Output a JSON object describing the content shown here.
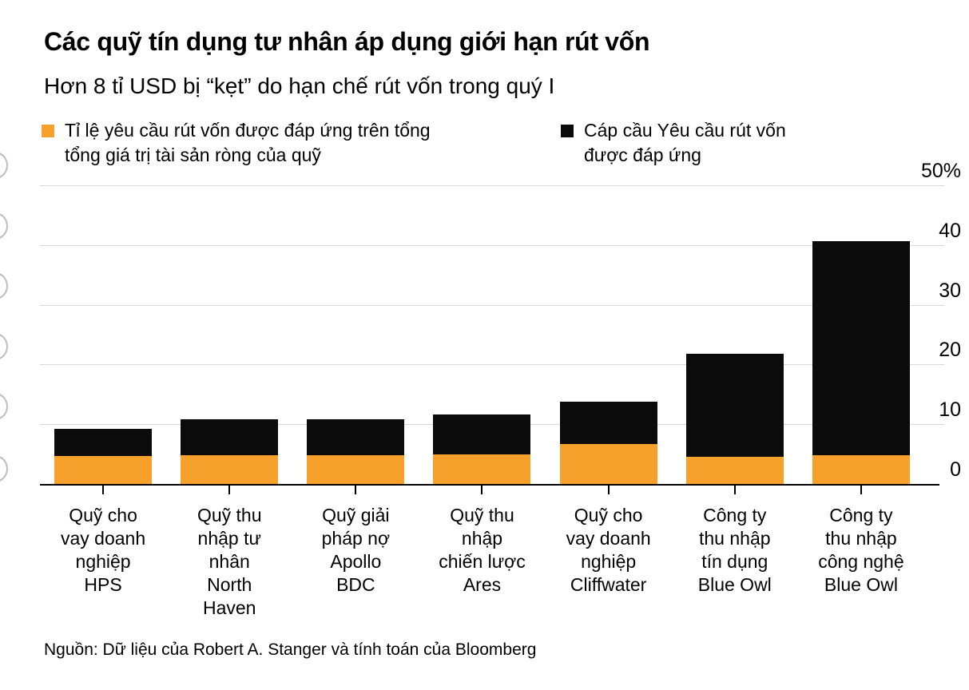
{
  "header": {
    "title": "Các quỹ tín dụng tư nhân áp dụng giới hạn rút vốn",
    "subtitle": "Hơn 8 tỉ USD bị “kẹt” do hạn chế rút vốn trong quý I"
  },
  "legend": [
    {
      "label": "Tỉ lệ yêu cầu rút vốn được đáp ứng trên tổng\ntổng giá trị tài sản ròng của quỹ",
      "color": "#F5A12B"
    },
    {
      "label": "Cáp cầu Yêu cầu rút vốn\nđược đáp ứng",
      "color": "#0B0B0B"
    }
  ],
  "chart_data": {
    "type": "bar",
    "stacked": true,
    "grid": "horizontal",
    "legend_position": "top",
    "ylim": [
      0,
      50
    ],
    "yticks": [
      {
        "label": "50%",
        "value": 50
      },
      {
        "label": "40",
        "value": 40
      },
      {
        "label": "30",
        "value": 30
      },
      {
        "label": "20",
        "value": 20
      },
      {
        "label": "10",
        "value": 10
      },
      {
        "label": "0",
        "value": 0
      }
    ],
    "categories": [
      "Quỹ cho\nvay doanh\nnghiệp\nHPS",
      "Quỹ thu\nnhập tư\nnhân\nNorth\nHaven",
      "Quỹ giải\npháp nợ\nApollo\nBDC",
      "Quỹ thu\nnhập\nchiến lược\nAres",
      "Quỹ cho\nvay doanh\nnghiệp\nCliffwater",
      "Công ty\nthu nhập\ntín dụng\nBlue Owl",
      "Công ty\nthu nhập\ncông nghệ\nBlue Owl"
    ],
    "series": [
      {
        "name": "Tỉ lệ yêu cầu rút vốn được đáp ứng trên tổng tổng giá trị tài sản ròng của quỹ",
        "color": "#F5A12B",
        "values": [
          4.7,
          4.8,
          4.8,
          5.0,
          6.7,
          4.6,
          4.8
        ]
      },
      {
        "name": "Cáp cầu Yêu cầu rút vốn được đáp ứng",
        "color": "#0B0B0B",
        "values": [
          4.5,
          6.0,
          6.0,
          6.6,
          7.1,
          17.2,
          35.8
        ]
      }
    ],
    "stack_totals": [
      9.2,
      10.8,
      10.8,
      11.6,
      13.8,
      21.8,
      40.6
    ]
  },
  "source": "Nguồn: Dữ liệu của Robert A. Stanger và tính toán của Bloomberg",
  "colors": {
    "orange": "#F5A12B",
    "black": "#0B0B0B",
    "gridline": "#D9D9D9",
    "background": "#FFFFFF"
  }
}
